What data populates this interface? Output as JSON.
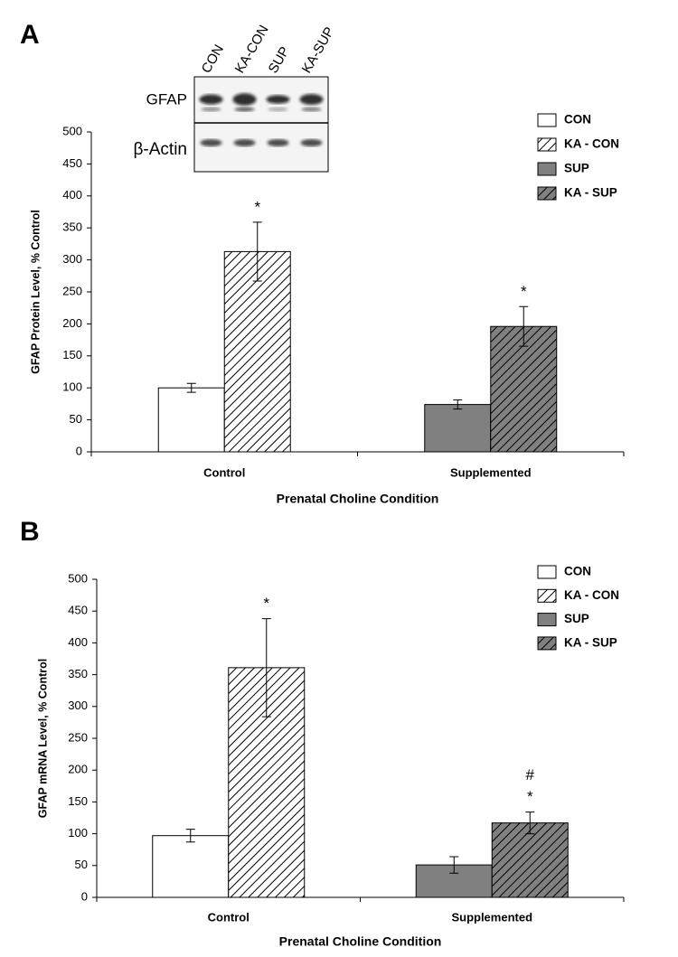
{
  "chart_data": [
    {
      "type": "bar",
      "panel_label": "A",
      "blot": {
        "lanes": [
          "CON",
          "KA-CON",
          "SUP",
          "KA-SUP"
        ],
        "rows": [
          "GFAP",
          "β-Actin"
        ]
      },
      "ylabel": "GFAP Protein Level, % Control",
      "xlabel": "Prenatal Choline Condition",
      "categories": [
        "Control",
        "Supplemented"
      ],
      "series": [
        {
          "name": "CON",
          "color": "#ffffff",
          "hatch": false,
          "values": [
            100,
            null
          ],
          "errors": [
            7,
            null
          ],
          "annotations": [
            null,
            null
          ]
        },
        {
          "name": "KA - CON",
          "color": "#ffffff",
          "hatch": true,
          "values": [
            313,
            null
          ],
          "errors": [
            46,
            null
          ],
          "annotations": [
            [
              "*"
            ],
            null
          ]
        },
        {
          "name": "SUP",
          "color": "#808080",
          "hatch": false,
          "values": [
            null,
            74
          ],
          "errors": [
            null,
            7
          ],
          "annotations": [
            null,
            null
          ]
        },
        {
          "name": "KA - SUP",
          "color": "#808080",
          "hatch": true,
          "values": [
            null,
            196
          ],
          "errors": [
            null,
            31
          ],
          "annotations": [
            null,
            [
              "*"
            ]
          ]
        }
      ],
      "ylim": [
        0,
        500
      ],
      "yticks": [
        0,
        50,
        100,
        150,
        200,
        250,
        300,
        350,
        400,
        450,
        500
      ],
      "grid": false,
      "legend": "top-right"
    },
    {
      "type": "bar",
      "panel_label": "B",
      "ylabel": "GFAP mRNA Level, % Control",
      "xlabel": "Prenatal Choline Condition",
      "categories": [
        "Control",
        "Supplemented"
      ],
      "series": [
        {
          "name": "CON",
          "color": "#ffffff",
          "hatch": false,
          "values": [
            97,
            null
          ],
          "errors": [
            10,
            null
          ],
          "annotations": [
            null,
            null
          ]
        },
        {
          "name": "KA - CON",
          "color": "#ffffff",
          "hatch": true,
          "values": [
            361,
            null
          ],
          "errors": [
            77,
            null
          ],
          "annotations": [
            [
              "*"
            ],
            null
          ]
        },
        {
          "name": "SUP",
          "color": "#808080",
          "hatch": false,
          "values": [
            null,
            51
          ],
          "errors": [
            null,
            13
          ],
          "annotations": [
            null,
            null
          ]
        },
        {
          "name": "KA - SUP",
          "color": "#808080",
          "hatch": true,
          "values": [
            null,
            117
          ],
          "errors": [
            null,
            17
          ],
          "annotations": [
            null,
            [
              "#",
              "*"
            ]
          ]
        }
      ],
      "ylim": [
        0,
        500
      ],
      "yticks": [
        0,
        50,
        100,
        150,
        200,
        250,
        300,
        350,
        400,
        450,
        500
      ],
      "grid": false,
      "legend": "top-right"
    }
  ]
}
